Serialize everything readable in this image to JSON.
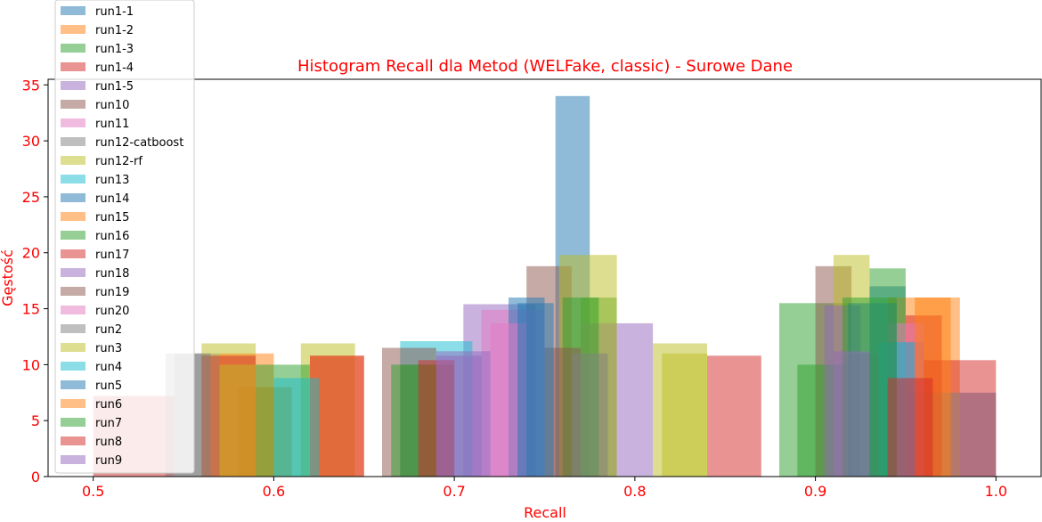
{
  "chart_data": {
    "type": "bar",
    "title": "Histogram Recall dla Metod (WELFake, classic) - Surowe Dane",
    "xlabel": "Recall",
    "ylabel": "Gęstość",
    "xlim": [
      0.475,
      1.025
    ],
    "ylim": [
      0,
      35.5
    ],
    "xticks": [
      "0.5",
      "0.6",
      "0.7",
      "0.8",
      "0.9",
      "1.0"
    ],
    "xtick_values": [
      0.5,
      0.6,
      0.7,
      0.8,
      0.9,
      1.0
    ],
    "yticks": [
      "0",
      "5",
      "10",
      "15",
      "20",
      "25",
      "30",
      "35"
    ],
    "ytick_values": [
      0,
      5,
      10,
      15,
      20,
      25,
      30,
      35
    ],
    "grid": false,
    "legend_position": "upper-left",
    "bar_alpha": 0.5,
    "series": [
      {
        "name": "run1-1",
        "color": "#1f77b4",
        "bars": [
          [
            0.756,
            0.775,
            34.0
          ],
          [
            0.93,
            0.95,
            17.0
          ],
          [
            0.98,
            1.0,
            7.5
          ]
        ]
      },
      {
        "name": "run1-2",
        "color": "#ff7f0e",
        "bars": [
          [
            0.94,
            0.98,
            16.0
          ],
          [
            0.58,
            0.61,
            8.0
          ]
        ]
      },
      {
        "name": "run1-3",
        "color": "#2ca02c",
        "bars": [
          [
            0.88,
            0.92,
            15.5
          ],
          [
            0.93,
            0.95,
            18.6
          ],
          [
            0.77,
            0.79,
            16.0
          ]
        ]
      },
      {
        "name": "run1-4",
        "color": "#d62728",
        "bars": [
          [
            0.96,
            1.0,
            10.4
          ],
          [
            0.5,
            0.545,
            7.2
          ]
        ]
      },
      {
        "name": "run1-5",
        "color": "#9467bd",
        "bars": [
          [
            0.705,
            0.745,
            15.4
          ],
          [
            0.77,
            0.81,
            13.7
          ]
        ]
      },
      {
        "name": "run10",
        "color": "#8c564b",
        "bars": [
          [
            0.74,
            0.765,
            18.8
          ],
          [
            0.9,
            0.92,
            18.8
          ]
        ]
      },
      {
        "name": "run11",
        "color": "#e377c2",
        "bars": [
          [
            0.715,
            0.75,
            14.9
          ]
        ]
      },
      {
        "name": "run12-catboost",
        "color": "#7f7f7f",
        "bars": [
          [
            0.54,
            0.57,
            11.0
          ],
          [
            0.95,
            0.98,
            7.5
          ]
        ]
      },
      {
        "name": "run12-rf",
        "color": "#bcbd22",
        "bars": [
          [
            0.758,
            0.79,
            19.8
          ],
          [
            0.91,
            0.93,
            19.8
          ],
          [
            0.81,
            0.84,
            11.9
          ],
          [
            0.56,
            0.59,
            11.9
          ],
          [
            0.615,
            0.645,
            11.9
          ]
        ]
      },
      {
        "name": "run13",
        "color": "#17becf",
        "bars": [
          [
            0.67,
            0.71,
            12.1
          ]
        ]
      },
      {
        "name": "run14",
        "color": "#1f77b4",
        "bars": [
          [
            0.73,
            0.75,
            16.0
          ],
          [
            0.94,
            0.96,
            12.0
          ]
        ]
      },
      {
        "name": "run15",
        "color": "#ff7f0e",
        "bars": [
          [
            0.57,
            0.6,
            11.0
          ],
          [
            0.62,
            0.65,
            10.8
          ]
        ]
      },
      {
        "name": "run16",
        "color": "#2ca02c",
        "bars": [
          [
            0.59,
            0.62,
            10.0
          ],
          [
            0.67,
            0.7,
            10.0
          ],
          [
            0.89,
            0.92,
            10.0
          ],
          [
            0.76,
            0.78,
            16.0
          ]
        ]
      },
      {
        "name": "run17",
        "color": "#d62728",
        "bars": [
          [
            0.56,
            0.59,
            10.8
          ],
          [
            0.62,
            0.65,
            10.8
          ],
          [
            0.84,
            0.87,
            10.8
          ],
          [
            0.95,
            0.97,
            14.4
          ]
        ]
      },
      {
        "name": "run18",
        "color": "#9467bd",
        "bars": [
          [
            0.69,
            0.72,
            11.2
          ],
          [
            0.905,
            0.925,
            15.3
          ]
        ]
      },
      {
        "name": "run19",
        "color": "#8c564b",
        "bars": [
          [
            0.66,
            0.69,
            11.5
          ],
          [
            0.75,
            0.77,
            11.5
          ]
        ]
      },
      {
        "name": "run20",
        "color": "#e377c2",
        "bars": [
          [
            0.72,
            0.74,
            13.7
          ],
          [
            0.94,
            0.96,
            13.7
          ]
        ]
      },
      {
        "name": "run2",
        "color": "#7f7f7f",
        "bars": [
          [
            0.545,
            0.565,
            11.0
          ],
          [
            0.915,
            0.935,
            11.0
          ],
          [
            0.765,
            0.785,
            11.0
          ]
        ]
      },
      {
        "name": "run3",
        "color": "#bcbd22",
        "bars": [
          [
            0.815,
            0.84,
            11.0
          ],
          [
            0.57,
            0.59,
            10.0
          ]
        ]
      },
      {
        "name": "run4",
        "color": "#17becf",
        "bars": [
          [
            0.6,
            0.625,
            8.8
          ],
          [
            0.935,
            0.955,
            12.0
          ]
        ]
      },
      {
        "name": "run5",
        "color": "#1f77b4",
        "bars": [
          [
            0.735,
            0.755,
            15.5
          ],
          [
            0.918,
            0.945,
            15.5
          ]
        ]
      },
      {
        "name": "run6",
        "color": "#ff7f0e",
        "bars": [
          [
            0.955,
            0.975,
            16.0
          ]
        ]
      },
      {
        "name": "run7",
        "color": "#2ca02c",
        "bars": [
          [
            0.665,
            0.69,
            10.0
          ],
          [
            0.915,
            0.945,
            16.0
          ]
        ]
      },
      {
        "name": "run8",
        "color": "#d62728",
        "bars": [
          [
            0.68,
            0.7,
            10.4
          ],
          [
            0.94,
            0.965,
            8.8
          ]
        ]
      },
      {
        "name": "run9",
        "color": "#9467bd",
        "bars": [
          [
            0.69,
            0.715,
            10.8
          ],
          [
            0.91,
            0.93,
            11.2
          ]
        ]
      }
    ]
  }
}
